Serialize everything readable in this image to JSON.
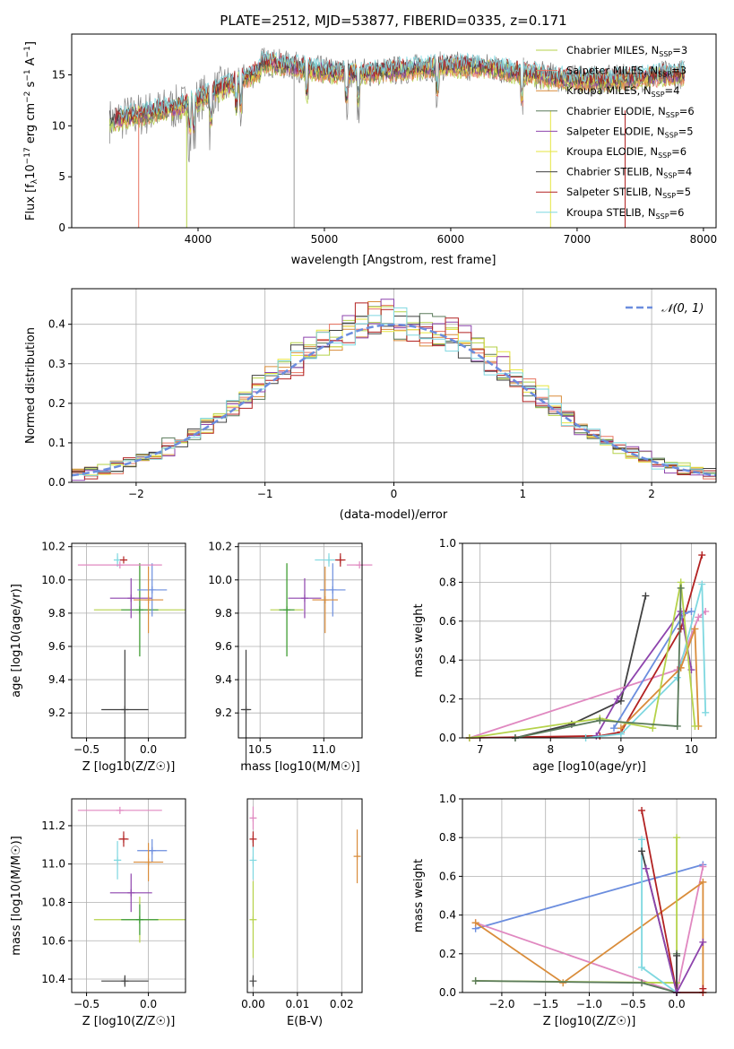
{
  "chart_data": [
    {
      "id": "spectrum",
      "type": "line",
      "title": "PLATE=2512, MJD=53877, FIBERID=0335, z=0.171",
      "xlabel": "wavelength [Angstrom, rest frame]",
      "ylabel": "Flux [fλ10⁻¹⁷ erg cm⁻² s⁻¹ A⁻¹]",
      "xlim": [
        3000,
        8100
      ],
      "ylim": [
        0,
        19
      ],
      "xticks": [
        4000,
        5000,
        6000,
        7000,
        8000
      ],
      "yticks": [
        0,
        5,
        10,
        15
      ],
      "legend_position": "right",
      "series": [
        {
          "name": "Chabrier MILES, N_SSP=3",
          "color": "#b5d24a"
        },
        {
          "name": "Salpeter MILES, N_SSP=3",
          "color": "#e87461"
        },
        {
          "name": "Kroupa MILES, N_SSP=4",
          "color": "#d98c3a"
        },
        {
          "name": "Chabrier ELODIE, N_SSP=6",
          "color": "#5a7a5a"
        },
        {
          "name": "Salpeter ELODIE, N_SSP=5",
          "color": "#8e44ad"
        },
        {
          "name": "Kroupa ELODIE, N_SSP=6",
          "color": "#e6e640"
        },
        {
          "name": "Chabrier STELIB, N_SSP=4",
          "color": "#404040"
        },
        {
          "name": "Salpeter STELIB, N_SSP=5",
          "color": "#b22222"
        },
        {
          "name": "Kroupa STELIB, N_SSP=6",
          "color": "#7fd8e0"
        }
      ]
    },
    {
      "id": "residuals",
      "type": "area",
      "xlabel": "(data-model)/error",
      "ylabel": "Normed distribution",
      "xlim": [
        -2.5,
        2.5
      ],
      "ylim": [
        0,
        0.49
      ],
      "xticks": [
        -2,
        -1,
        0,
        1,
        2
      ],
      "yticks": [
        0.0,
        0.1,
        0.2,
        0.3,
        0.4
      ],
      "legend": "N(0,1)",
      "legend_position": "top-right",
      "grid": true
    },
    {
      "id": "age_vs_Z",
      "type": "scatter",
      "xlabel": "Z [log10(Z/Z☉)]",
      "ylabel": "age [log10(age/yr)]",
      "xlim": [
        -0.62,
        0.3
      ],
      "ylim": [
        9.05,
        10.22
      ],
      "xticks": [
        -0.5,
        0.0
      ],
      "yticks": [
        9.2,
        9.4,
        9.6,
        9.8,
        10.0,
        10.2
      ],
      "points": [
        {
          "x": -0.19,
          "y": 9.22,
          "xerr": 0.19,
          "yerr": 0.36,
          "color": "#404040"
        },
        {
          "x": -0.07,
          "y": 9.82,
          "xerr": 0.37,
          "yerr": 0.28,
          "color": "#b5d24a"
        },
        {
          "x": -0.07,
          "y": 9.82,
          "xerr": 0.15,
          "yerr": 0.28,
          "color": "#3a9a3a"
        },
        {
          "x": -0.14,
          "y": 9.89,
          "xerr": 0.17,
          "yerr": 0.12,
          "color": "#8e44ad"
        },
        {
          "x": -0.25,
          "y": 10.12,
          "xerr": 0.03,
          "yerr": 0.04,
          "color": "#7fd8e0"
        },
        {
          "x": -0.2,
          "y": 10.12,
          "xerr": 0.03,
          "yerr": 0.0,
          "color": "#b22222"
        },
        {
          "x": 0.03,
          "y": 9.94,
          "xerr": 0.12,
          "yerr": 0.16,
          "color": "#6b8dde"
        },
        {
          "x": 0.0,
          "y": 9.88,
          "xerr": 0.12,
          "yerr": 0.2,
          "color": "#d98c3a"
        },
        {
          "x": -0.23,
          "y": 10.09,
          "xerr": 0.34,
          "yerr": 0.0,
          "color": "#e088c0"
        }
      ]
    },
    {
      "id": "age_vs_mass",
      "type": "scatter",
      "xlabel": "mass [log10(M/M☉)]",
      "ylabel": "",
      "xlim": [
        10.33,
        11.3
      ],
      "ylim": [
        9.05,
        10.22
      ],
      "xticks": [
        10.5,
        11.0
      ],
      "yticks": [
        9.2,
        9.4,
        9.6,
        9.8,
        10.0,
        10.2
      ],
      "points": [
        {
          "x": 10.39,
          "y": 9.22,
          "xerr": 0.04,
          "yerr": 0.36,
          "color": "#404040"
        },
        {
          "x": 10.71,
          "y": 9.82,
          "xerr": 0.13,
          "yerr": 0.28,
          "color": "#b5d24a"
        },
        {
          "x": 10.71,
          "y": 9.82,
          "xerr": 0.06,
          "yerr": 0.28,
          "color": "#3a9a3a"
        },
        {
          "x": 10.85,
          "y": 9.89,
          "xerr": 0.13,
          "yerr": 0.12,
          "color": "#8e44ad"
        },
        {
          "x": 11.04,
          "y": 10.12,
          "xerr": 0.11,
          "yerr": 0.04,
          "color": "#7fd8e0"
        },
        {
          "x": 11.13,
          "y": 10.12,
          "xerr": 0.04,
          "yerr": 0.04,
          "color": "#b22222"
        },
        {
          "x": 11.07,
          "y": 9.94,
          "xerr": 0.1,
          "yerr": 0.16,
          "color": "#6b8dde"
        },
        {
          "x": 11.01,
          "y": 9.88,
          "xerr": 0.1,
          "yerr": 0.2,
          "color": "#d98c3a"
        },
        {
          "x": 11.28,
          "y": 10.09,
          "xerr": 0.1,
          "yerr": 0.0,
          "color": "#e088c0"
        }
      ]
    },
    {
      "id": "mass_weight_vs_age",
      "type": "line",
      "xlabel": "age [log10(age/yr)]",
      "ylabel": "mass weight",
      "xlim": [
        6.75,
        10.35
      ],
      "ylim": [
        0,
        1.0
      ],
      "xticks": [
        7,
        8,
        9,
        10
      ],
      "yticks": [
        0.0,
        0.2,
        0.4,
        0.6,
        0.8,
        1.0
      ],
      "grid": true,
      "series": [
        {
          "color": "#404040",
          "x": [
            7.5,
            8.3,
            9.0,
            9.35
          ],
          "y": [
            0.0,
            0.07,
            0.19,
            0.73
          ]
        },
        {
          "color": "#e088c0",
          "x": [
            6.85,
            9.8,
            10.1,
            10.2
          ],
          "y": [
            0.0,
            0.35,
            0.62,
            0.65
          ]
        },
        {
          "color": "#b22222",
          "x": [
            6.85,
            8.7,
            9.0,
            9.85,
            10.15
          ],
          "y": [
            0.0,
            0.01,
            0.03,
            0.56,
            0.94
          ]
        },
        {
          "color": "#8e44ad",
          "x": [
            8.65,
            8.95,
            9.85,
            10.0
          ],
          "y": [
            0.01,
            0.2,
            0.65,
            0.35
          ]
        },
        {
          "color": "#7fd8e0",
          "x": [
            8.5,
            9.0,
            9.8,
            10.15,
            10.2
          ],
          "y": [
            0.0,
            0.02,
            0.31,
            0.79,
            0.13
          ]
        },
        {
          "color": "#6b8dde",
          "x": [
            8.9,
            9.9,
            10.0
          ],
          "y": [
            0.05,
            0.64,
            0.65
          ]
        },
        {
          "color": "#d98c3a",
          "x": [
            9.0,
            9.85,
            10.05,
            10.1
          ],
          "y": [
            0.05,
            0.36,
            0.56,
            0.06
          ]
        },
        {
          "color": "#b5d24a",
          "x": [
            6.85,
            8.7,
            9.45,
            9.85,
            10.05
          ],
          "y": [
            0.0,
            0.1,
            0.05,
            0.8,
            0.06
          ]
        },
        {
          "color": "#5a7a5a",
          "x": [
            7.5,
            8.7,
            9.8,
            9.85
          ],
          "y": [
            0.0,
            0.09,
            0.06,
            0.77
          ]
        }
      ]
    },
    {
      "id": "mass_vs_Z",
      "type": "scatter",
      "xlabel": "Z [log10(Z/Z☉)]",
      "ylabel": "mass [log10(M/M☉)]",
      "xlim": [
        -0.62,
        0.3
      ],
      "ylim": [
        10.33,
        11.34
      ],
      "xticks": [
        -0.5,
        0.0
      ],
      "yticks": [
        10.4,
        10.6,
        10.8,
        11.0,
        11.2
      ],
      "points": [
        {
          "x": -0.19,
          "y": 10.39,
          "xerr": 0.19,
          "yerr": 0.03,
          "color": "#404040"
        },
        {
          "x": -0.07,
          "y": 10.71,
          "xerr": 0.37,
          "yerr": 0.12,
          "color": "#b5d24a"
        },
        {
          "x": -0.07,
          "y": 10.71,
          "xerr": 0.15,
          "yerr": 0.08,
          "color": "#3a9a3a"
        },
        {
          "x": -0.14,
          "y": 10.85,
          "xerr": 0.17,
          "yerr": 0.1,
          "color": "#8e44ad"
        },
        {
          "x": -0.25,
          "y": 11.02,
          "xerr": 0.03,
          "yerr": 0.1,
          "color": "#7fd8e0"
        },
        {
          "x": -0.2,
          "y": 11.13,
          "xerr": 0.04,
          "yerr": 0.04,
          "color": "#b22222"
        },
        {
          "x": 0.03,
          "y": 11.07,
          "xerr": 0.12,
          "yerr": 0.06,
          "color": "#6b8dde"
        },
        {
          "x": 0.0,
          "y": 11.01,
          "xerr": 0.12,
          "yerr": 0.1,
          "color": "#d98c3a"
        },
        {
          "x": -0.23,
          "y": 11.28,
          "xerr": 0.34,
          "yerr": 0.0,
          "color": "#e088c0"
        }
      ]
    },
    {
      "id": "mass_vs_EBV",
      "type": "scatter",
      "xlabel": "E(B-V)",
      "ylabel": "",
      "xlim": [
        -0.0013,
        0.0246
      ],
      "ylim": [
        10.33,
        11.34
      ],
      "xticks": [
        0.0,
        0.01,
        0.02
      ],
      "points": [
        {
          "x": 0.0,
          "y": 10.39,
          "yerr": 0.03,
          "color": "#404040"
        },
        {
          "x": 0.0,
          "y": 10.71,
          "yerr": 0.2,
          "color": "#b5d24a"
        },
        {
          "x": 0.0,
          "y": 11.02,
          "yerr": 0.1,
          "color": "#7fd8e0"
        },
        {
          "x": 0.0,
          "y": 11.13,
          "yerr": 0.04,
          "color": "#b22222"
        },
        {
          "x": 0.0,
          "y": 11.24,
          "yerr": 0.06,
          "color": "#e088c0"
        },
        {
          "x": 0.0235,
          "y": 11.04,
          "yerr": 0.14,
          "color": "#d98c3a"
        }
      ]
    },
    {
      "id": "mass_weight_vs_Z",
      "type": "line",
      "xlabel": "Z [log10(Z/Z☉)]",
      "ylabel": "mass weight",
      "xlim": [
        -2.45,
        0.45
      ],
      "ylim": [
        0,
        1.0
      ],
      "xticks": [
        -2.0,
        -1.5,
        -1.0,
        -0.5,
        0.0
      ],
      "yticks": [
        0.0,
        0.2,
        0.4,
        0.6,
        0.8,
        1.0
      ],
      "grid": true,
      "series": [
        {
          "color": "#6b8dde",
          "x": [
            -2.3,
            0.3
          ],
          "y": [
            0.33,
            0.66
          ]
        },
        {
          "color": "#e088c0",
          "x": [
            -2.3,
            0.0,
            0.3
          ],
          "y": [
            0.36,
            0.0,
            0.65
          ]
        },
        {
          "color": "#d98c3a",
          "x": [
            -2.3,
            -1.3,
            0.3,
            0.3
          ],
          "y": [
            0.36,
            0.05,
            0.57,
            0.0
          ]
        },
        {
          "color": "#b5d24a",
          "x": [
            -2.3,
            0.0,
            0.0
          ],
          "y": [
            0.06,
            0.05,
            0.8
          ]
        },
        {
          "color": "#5a7a5a",
          "x": [
            -2.3,
            -0.4,
            0.0,
            0.0
          ],
          "y": [
            0.06,
            0.05,
            0.0,
            0.2
          ]
        },
        {
          "color": "#7fd8e0",
          "x": [
            -0.4,
            -0.4,
            0.0
          ],
          "y": [
            0.79,
            0.13,
            0.0
          ]
        },
        {
          "color": "#404040",
          "x": [
            -0.4,
            0.0,
            0.0
          ],
          "y": [
            0.73,
            0.0,
            0.19
          ]
        },
        {
          "color": "#b22222",
          "x": [
            -0.4,
            0.0,
            0.3,
            0.3
          ],
          "y": [
            0.94,
            0.0,
            0.0,
            0.02
          ]
        },
        {
          "color": "#8e44ad",
          "x": [
            -0.35,
            0.0,
            0.3
          ],
          "y": [
            0.64,
            0.0,
            0.26
          ]
        }
      ]
    }
  ]
}
